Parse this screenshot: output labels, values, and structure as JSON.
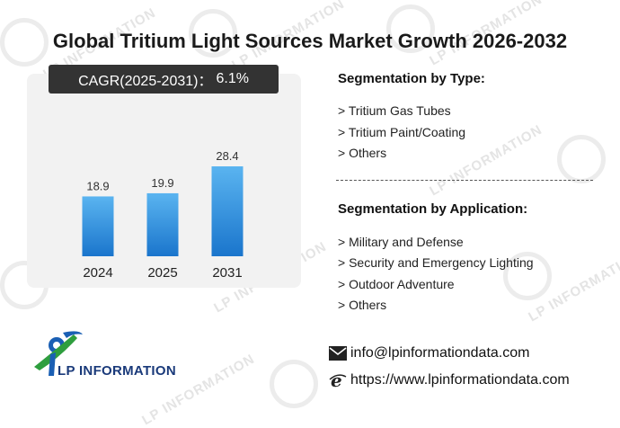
{
  "title": "Global Tritium Light Sources Market Growth 2026-2032",
  "cagr": {
    "label": "CAGR(2025-2031)：",
    "value": "6.1%"
  },
  "chart_data": {
    "type": "bar",
    "title": "",
    "xlabel": "",
    "ylabel": "",
    "categories": [
      "2024",
      "2025",
      "2031"
    ],
    "values": [
      18.9,
      19.9,
      28.4
    ],
    "data_labels": [
      "18.9",
      "19.9",
      "28.4"
    ],
    "ylim": [
      0,
      32
    ],
    "grid": false,
    "colors": {
      "bar_top": "#5ab4f0",
      "bar_bottom": "#1a75cc"
    }
  },
  "segmentation_type": {
    "heading": "Segmentation by Type:",
    "items": [
      "> Tritium Gas Tubes",
      "> Tritium Paint/Coating",
      "> Others"
    ]
  },
  "segmentation_application": {
    "heading": "Segmentation by Application:",
    "items": [
      "> Military and Defense",
      "> Security and Emergency Lighting",
      "> Outdoor Adventure",
      "> Others"
    ]
  },
  "contact": {
    "email": "info@lpinformationdata.com",
    "website": "https://www.lpinformationdata.com",
    "email_icon": "envelope-icon",
    "web_icon": "browser-e-icon"
  },
  "logo": {
    "text": "LP INFORMATION"
  },
  "watermark": {
    "text": "LP INFORMATION"
  }
}
